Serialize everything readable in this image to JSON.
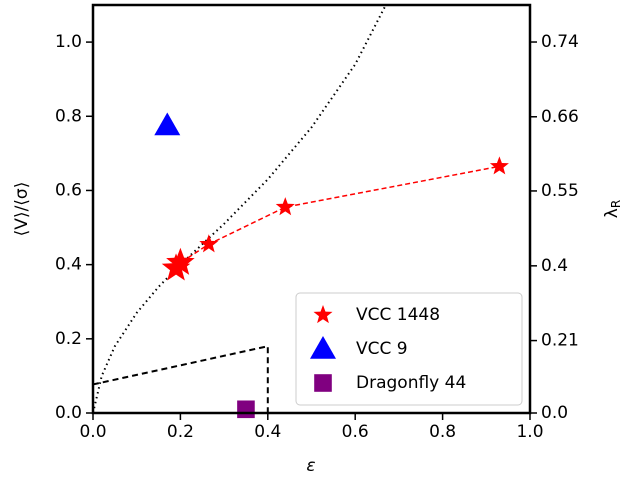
{
  "chart_data": {
    "type": "scatter",
    "xlabel": "ε",
    "ylabel": "⟨V⟩/⟨σ⟩",
    "y2label": {
      "text": "λ",
      "sub": "R"
    },
    "xlim": [
      0,
      1
    ],
    "ylim": [
      0,
      1.1
    ],
    "xticks": [
      {
        "value": 0,
        "label": "0.0"
      },
      0.2,
      0.4,
      0.6,
      0.8,
      {
        "value": 1,
        "label": "1.0"
      }
    ],
    "yticks": [
      {
        "value": 0,
        "label": "0.0"
      },
      0.2,
      0.4,
      0.6,
      0.8,
      {
        "value": 1,
        "label": "1.0"
      }
    ],
    "y2ticks": [
      {
        "value": 0,
        "label": "0.0"
      },
      0.21,
      0.4,
      0.55,
      0.66,
      0.74
    ],
    "legend": "lower right",
    "series": [
      {
        "name": "VCC 1448",
        "color": "#ff0000",
        "marker": "star",
        "connect": true,
        "x": [
          0.19,
          0.2,
          0.265,
          0.44,
          0.93
        ],
        "values": [
          0.39,
          0.405,
          0.455,
          0.555,
          0.665
        ]
      },
      {
        "name": "VCC 9",
        "color": "#0000ff",
        "marker": "triangle",
        "x": [
          0.17
        ],
        "values": [
          0.775
        ]
      },
      {
        "name": "Dragonfly 44",
        "color": "#800080",
        "marker": "square",
        "x": [
          0.35
        ],
        "values": [
          0.01
        ]
      }
    ],
    "lines": [
      {
        "style": "dotted",
        "color": "#000000",
        "x": [
          0,
          0.02,
          0.05,
          0.1,
          0.15,
          0.2,
          0.3,
          0.4,
          0.5,
          0.6,
          0.67
        ],
        "values": [
          0,
          0.1,
          0.18,
          0.27,
          0.34,
          0.4,
          0.51,
          0.63,
          0.77,
          0.94,
          1.1
        ]
      },
      {
        "style": "dashed",
        "color": "#000000",
        "x": [
          0,
          0.4,
          0.4
        ],
        "values": [
          0.077,
          0.18,
          0
        ]
      }
    ]
  }
}
